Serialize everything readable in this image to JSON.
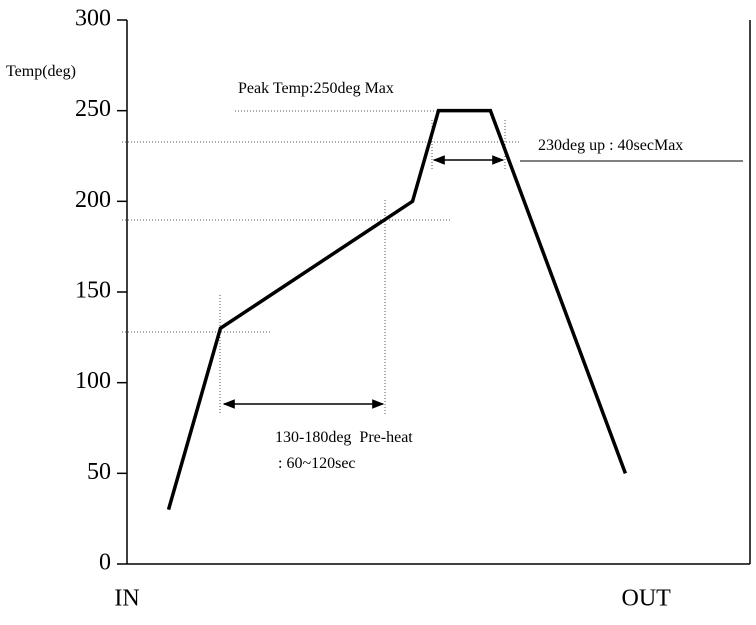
{
  "chart_data": {
    "type": "line",
    "y_label": "Temp(deg)",
    "x": [
      8,
      18,
      55,
      60,
      70,
      96
    ],
    "values": [
      30,
      130,
      200,
      250,
      250,
      50
    ],
    "color": "#000000",
    "xlim": [
      0,
      120
    ],
    "xticks": [
      {
        "value": 0,
        "label": "IN"
      },
      {
        "value": 100,
        "label": "OUT"
      }
    ],
    "ylim": [
      0,
      300
    ],
    "yticks": [
      0,
      50,
      100,
      150,
      200,
      250,
      300
    ],
    "grid": false,
    "annotations": [
      "Peak Temp:250deg Max",
      "230deg up : 40secMax",
      "130-180deg  Pre-heat",
      ": 60~120sec"
    ]
  }
}
